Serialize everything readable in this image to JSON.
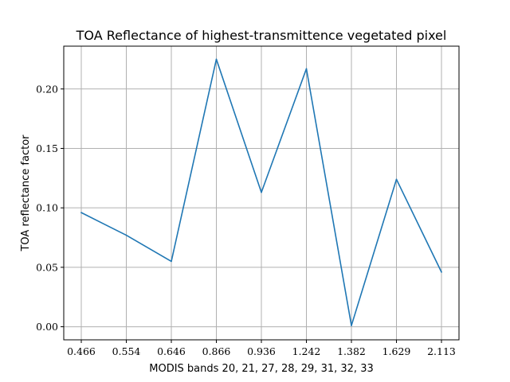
{
  "chart_data": {
    "type": "line",
    "title": "TOA Reflectance of highest-transmittence vegetated pixel",
    "xlabel": "MODIS bands 20, 21, 27, 28, 29, 31, 32, 33",
    "ylabel": "TOA reflectance factor",
    "categories": [
      "0.466",
      "0.554",
      "0.646",
      "0.866",
      "0.936",
      "1.242",
      "1.382",
      "1.629",
      "2.113"
    ],
    "series": [
      {
        "values": [
          0.096,
          0.077,
          0.055,
          0.225,
          0.113,
          0.217,
          0.001,
          0.124,
          0.046
        ],
        "color": "#1f77b4"
      }
    ],
    "ylim": [
      -0.011,
      0.236
    ],
    "yticks": [
      "0.00",
      "0.05",
      "0.10",
      "0.15",
      "0.20"
    ],
    "grid": true
  }
}
